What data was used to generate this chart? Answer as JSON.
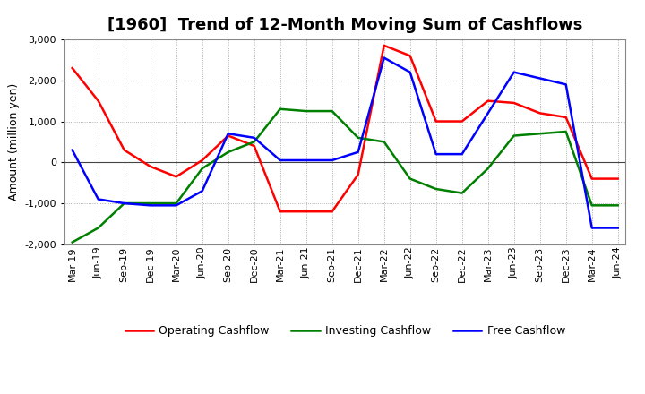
{
  "title": "[1960]  Trend of 12-Month Moving Sum of Cashflows",
  "ylabel": "Amount (million yen)",
  "ylim": [
    -2000,
    3000
  ],
  "yticks": [
    -2000,
    -1000,
    0,
    1000,
    2000,
    3000
  ],
  "x_labels": [
    "Mar-19",
    "Jun-19",
    "Sep-19",
    "Dec-19",
    "Mar-20",
    "Jun-20",
    "Sep-20",
    "Dec-20",
    "Mar-21",
    "Jun-21",
    "Sep-21",
    "Dec-21",
    "Mar-22",
    "Jun-22",
    "Sep-22",
    "Dec-22",
    "Mar-23",
    "Jun-23",
    "Sep-23",
    "Dec-23",
    "Mar-24",
    "Jun-24"
  ],
  "operating": [
    2300,
    1500,
    300,
    -100,
    -350,
    50,
    650,
    400,
    -1200,
    -1200,
    -1200,
    -300,
    2850,
    2600,
    1000,
    1000,
    1500,
    1450,
    1200,
    1100,
    -400,
    -400
  ],
  "investing": [
    -1950,
    -1600,
    -1000,
    -1000,
    -1000,
    -150,
    250,
    500,
    1300,
    1250,
    1250,
    600,
    500,
    -400,
    -650,
    -750,
    -150,
    650,
    700,
    750,
    -1050,
    -1050
  ],
  "free": [
    300,
    -900,
    -1000,
    -1050,
    -1050,
    -700,
    700,
    600,
    50,
    50,
    50,
    250,
    2550,
    2200,
    200,
    200,
    1200,
    2200,
    2050,
    1900,
    -1600,
    -1600
  ],
  "operating_color": "#ff0000",
  "investing_color": "#008000",
  "free_color": "#0000ff",
  "bg_color": "#ffffff",
  "plot_bg_color": "#ffffff",
  "grid_color": "#999999",
  "title_fontsize": 13,
  "label_fontsize": 9,
  "tick_fontsize": 8,
  "legend_fontsize": 9
}
